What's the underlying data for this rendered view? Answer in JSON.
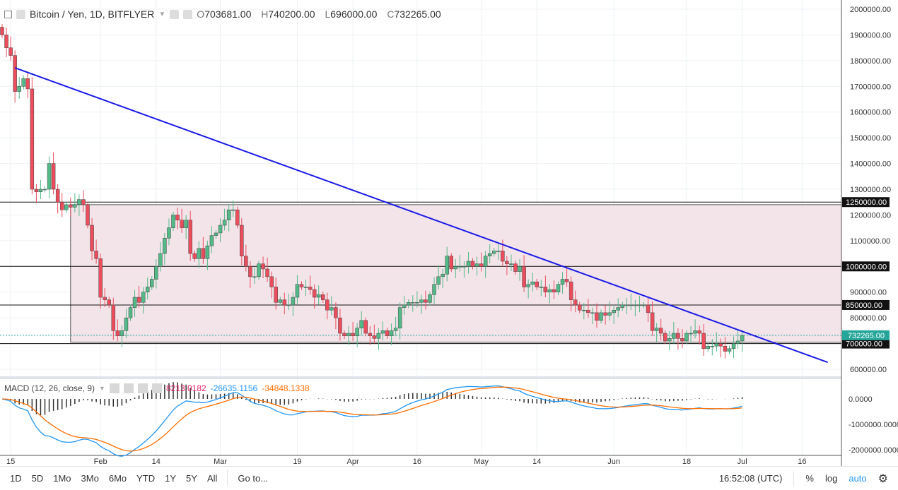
{
  "header": {
    "title": "Bitcoin / Yen, 1D, BITFLYER",
    "open_label": "O",
    "open": "703681.00",
    "high_label": "H",
    "high": "740200.00",
    "low_label": "L",
    "low": "696000.00",
    "close_label": "C",
    "close": "732265.00"
  },
  "macd_legend": {
    "title": "MACD (12, 26, close, 9)",
    "hist": "8213.0182",
    "macd": "-26635.1156",
    "signal": "-34848.1338"
  },
  "bottom_bar": {
    "ranges": [
      "1D",
      "5D",
      "1Mo",
      "3Mo",
      "6Mo",
      "YTD",
      "1Y",
      "5Y",
      "All"
    ],
    "goto": "Go to...",
    "time": "16:52:08 (UTC)",
    "percent": "%",
    "log": "log",
    "auto": "auto"
  },
  "colors": {
    "up": "#53b987",
    "down": "#eb4d5c",
    "trend": "#1a1ae6",
    "zone": "#f3e4ea",
    "macd": "#2196f3",
    "signal": "#ff6d00",
    "hist": "#e91e63",
    "last": "#26a69a"
  },
  "chart_data": {
    "type": "candlestick",
    "title": "Bitcoin / Yen, 1D, BITFLYER",
    "x_ticks": [
      {
        "label": "15",
        "i": 2
      },
      {
        "label": "Feb",
        "i": 23
      },
      {
        "label": "14",
        "i": 36
      },
      {
        "label": "Mar",
        "i": 51
      },
      {
        "label": "19",
        "i": 69
      },
      {
        "label": "Apr",
        "i": 82
      },
      {
        "label": "16",
        "i": 97
      },
      {
        "label": "May",
        "i": 112
      },
      {
        "label": "14",
        "i": 125
      },
      {
        "label": "Jun",
        "i": 143
      },
      {
        "label": "18",
        "i": 160
      },
      {
        "label": "Jul",
        "i": 173
      },
      {
        "label": "16",
        "i": 187
      }
    ],
    "y_ticks": [
      "2000000.00",
      "1900000.00",
      "1800000.00",
      "1700000.00",
      "1600000.00",
      "1500000.00",
      "1400000.00",
      "1300000.00",
      "1200000.00",
      "1100000.00",
      "900000.00",
      "800000.00",
      "600000.00"
    ],
    "ylim": [
      580000,
      2040000
    ],
    "closes_k": [
      1900,
      1850,
      1820,
      1680,
      1700,
      1730,
      1690,
      1300,
      1290,
      1300,
      1300,
      1400,
      1300,
      1250,
      1220,
      1240,
      1230,
      1240,
      1260,
      1240,
      1160,
      1060,
      1030,
      880,
      870,
      850,
      750,
      730,
      750,
      800,
      840,
      880,
      860,
      900,
      920,
      950,
      1000,
      1050,
      1110,
      1150,
      1200,
      1180,
      1150,
      1180,
      1050,
      1030,
      1070,
      1030,
      1080,
      1120,
      1130,
      1160,
      1180,
      1220,
      1220,
      1160,
      1040,
      1000,
      960,
      960,
      1010,
      990,
      960,
      920,
      860,
      870,
      850,
      850,
      880,
      930,
      920,
      920,
      910,
      880,
      890,
      870,
      830,
      840,
      800,
      740,
      730,
      740,
      730,
      760,
      790,
      740,
      730,
      720,
      740,
      750,
      730,
      750,
      760,
      840,
      850,
      860,
      860,
      860,
      870,
      860,
      890,
      930,
      960,
      970,
      1040,
      990,
      1000,
      1000,
      1000,
      1020,
      1000,
      1010,
      1000,
      1040,
      1050,
      1060,
      1060,
      1020,
      1010,
      1010,
      980,
      1000,
      920,
      930,
      940,
      920,
      920,
      900,
      910,
      900,
      930,
      950,
      940,
      870,
      850,
      830,
      830,
      820,
      820,
      790,
      820,
      810,
      820,
      830,
      840,
      850,
      850,
      850,
      850,
      850,
      850,
      820,
      750,
      760,
      740,
      710,
      720,
      740,
      720,
      710,
      740,
      740,
      750,
      740,
      680,
      690,
      690,
      700,
      690,
      670,
      680,
      700,
      710,
      732.265
    ],
    "levels": [
      {
        "value": 1250000,
        "label": "1250000.00"
      },
      {
        "value": 1000000,
        "label": "1000000.00"
      },
      {
        "value": 850000,
        "label": "850000.00"
      },
      {
        "value": 700000,
        "label": "700000.00"
      }
    ],
    "last_price": {
      "value": 732265,
      "label": "732265.00"
    },
    "zone": {
      "from_i": 16,
      "top": 1240000,
      "bottom": 705000
    },
    "trendline": {
      "from_i": 3,
      "from": 1772000,
      "to_i": 193,
      "to": 627000
    },
    "macd": {
      "y_ticks": [
        "0.0000",
        "-1000000.0000",
        "-2000000.0000"
      ],
      "ylim": [
        -230000,
        80000
      ],
      "fast": 12,
      "slow": 26,
      "signal": 9
    }
  }
}
